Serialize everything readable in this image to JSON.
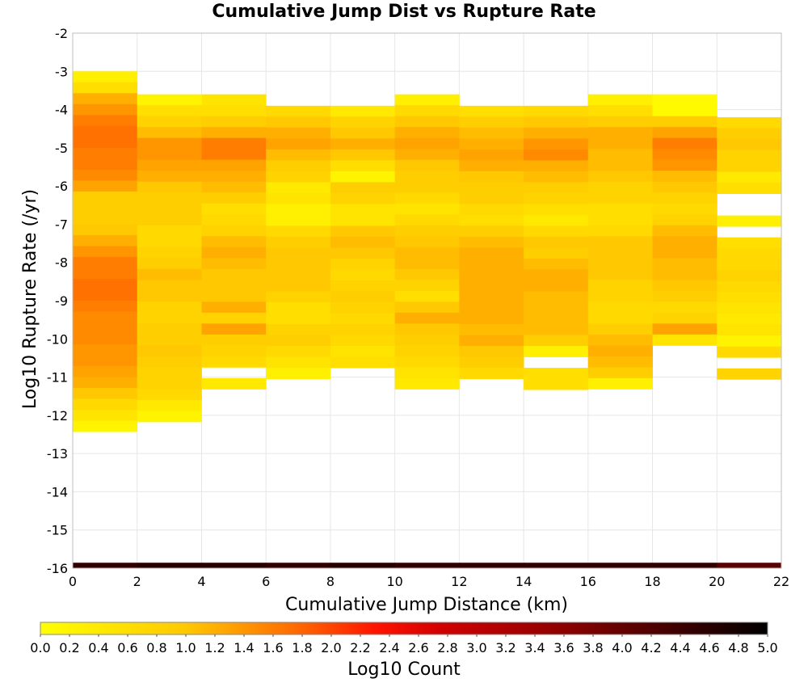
{
  "chart_data": {
    "type": "heatmap",
    "title": "Cumulative Jump Dist vs Rupture Rate",
    "xlabel": "Cumulative Jump Distance (km)",
    "ylabel": "Log10 Rupture Rate (/yr)",
    "colorbar_label": "Log10 Count",
    "xlim": [
      0,
      22
    ],
    "ylim": [
      -16,
      -2
    ],
    "x_ticks": [
      "0",
      "2",
      "4",
      "6",
      "8",
      "10",
      "12",
      "14",
      "16",
      "18",
      "20",
      "22"
    ],
    "y_ticks": [
      "-2",
      "-3",
      "-4",
      "-5",
      "-6",
      "-7",
      "-8",
      "-9",
      "-10",
      "-11",
      "-12",
      "-13",
      "-14",
      "-15",
      "-16"
    ],
    "colorbar_ticks": [
      "0.0",
      "0.2",
      "0.4",
      "0.6",
      "0.8",
      "1.0",
      "1.2",
      "1.4",
      "1.6",
      "1.8",
      "2.0",
      "2.2",
      "2.4",
      "2.6",
      "2.8",
      "3.0",
      "3.2",
      "3.4",
      "3.6",
      "3.8",
      "4.0",
      "4.2",
      "4.4",
      "4.6",
      "4.8",
      "5.0"
    ],
    "colorbar_range": [
      0,
      5
    ],
    "x_bin_width_km": 2,
    "y_bin_height": 0.2857,
    "grid": true,
    "columns": [
      {
        "x_start": 0,
        "y_top": -3.0,
        "values": [
          0.3,
          0.6,
          1.2,
          1.4,
          1.6,
          1.7,
          1.7,
          1.6,
          1.6,
          1.5,
          1.3,
          0.9,
          0.9,
          0.9,
          1.0,
          1.2,
          1.4,
          1.6,
          1.6,
          1.7,
          1.7,
          1.6,
          1.5,
          1.5,
          1.5,
          1.4,
          1.4,
          1.3,
          1.2,
          1.0,
          0.7,
          0.5,
          0.2
        ]
      },
      {
        "x_start": 2,
        "y_top": -3.6,
        "values": [
          0.2,
          0.6,
          0.8,
          1.1,
          1.4,
          1.4,
          1.3,
          1.2,
          1.0,
          0.9,
          0.9,
          0.9,
          0.7,
          0.7,
          0.8,
          0.9,
          1.1,
          1.0,
          1.0,
          0.8,
          0.8,
          0.9,
          0.9,
          1.0,
          0.9,
          0.8,
          0.8,
          0.7,
          0.4,
          0.2
        ]
      },
      {
        "x_start": 4,
        "y_top": -3.6,
        "values": [
          0.5,
          0.6,
          0.9,
          1.2,
          1.6,
          1.6,
          1.3,
          1.2,
          1.1,
          0.9,
          0.6,
          0.7,
          0.8,
          1.1,
          1.2,
          1.1,
          1.0,
          1.0,
          1.0,
          1.2,
          0.8,
          1.3,
          0.9,
          0.8,
          0.7,
          null,
          0.4
        ]
      },
      {
        "x_start": 6,
        "y_top": -3.9,
        "values": [
          0.7,
          1.0,
          1.2,
          1.3,
          1.1,
          0.9,
          0.8,
          0.4,
          0.5,
          0.3,
          0.3,
          0.7,
          0.9,
          1.0,
          1.0,
          1.0,
          1.0,
          0.8,
          0.6,
          0.6,
          0.8,
          0.9,
          0.7,
          0.5,
          0.3
        ]
      },
      {
        "x_start": 8,
        "y_top": -3.9,
        "values": [
          0.4,
          0.8,
          1.0,
          1.2,
          1.0,
          0.6,
          0.2,
          0.9,
          0.8,
          0.5,
          0.5,
          1.0,
          1.1,
          1.0,
          0.8,
          0.7,
          0.8,
          0.9,
          0.8,
          0.7,
          0.8,
          0.7,
          0.5,
          0.6
        ]
      },
      {
        "x_start": 10,
        "y_top": -3.6,
        "values": [
          0.3,
          0.7,
          1.0,
          1.2,
          1.3,
          1.2,
          1.0,
          0.9,
          0.9,
          0.7,
          0.5,
          0.7,
          0.9,
          1.0,
          1.1,
          1.1,
          1.0,
          0.8,
          0.6,
          1.0,
          1.2,
          1.0,
          0.9,
          0.8,
          0.7,
          0.5,
          0.4
        ]
      },
      {
        "x_start": 12,
        "y_top": -3.9,
        "values": [
          0.6,
          0.9,
          1.1,
          1.2,
          1.3,
          1.2,
          1.0,
          0.9,
          0.9,
          0.7,
          0.6,
          0.9,
          1.1,
          1.2,
          1.2,
          1.2,
          1.2,
          1.2,
          1.2,
          1.2,
          1.1,
          1.2,
          1.0,
          0.9,
          0.7
        ]
      },
      {
        "x_start": 14,
        "y_top": -3.9,
        "values": [
          0.7,
          1.0,
          1.2,
          1.4,
          1.5,
          1.2,
          1.1,
          0.9,
          0.8,
          0.6,
          0.4,
          0.7,
          1.0,
          0.9,
          1.1,
          1.2,
          1.2,
          1.1,
          1.1,
          1.1,
          1.1,
          0.9,
          0.3,
          null,
          0.6,
          0.6
        ]
      },
      {
        "x_start": 16,
        "y_top": -3.6,
        "values": [
          0.3,
          0.6,
          0.9,
          1.2,
          1.2,
          1.1,
          1.1,
          1.0,
          0.8,
          0.8,
          0.6,
          0.6,
          0.7,
          1.0,
          1.0,
          1.0,
          1.0,
          0.8,
          0.8,
          0.7,
          0.7,
          0.9,
          1.1,
          1.2,
          1.1,
          0.9,
          0.3
        ]
      },
      {
        "x_start": 18,
        "y_top": -3.6,
        "values": [
          0.1,
          0.1,
          0.9,
          1.3,
          1.6,
          1.5,
          1.4,
          1.1,
          1.0,
          0.8,
          0.7,
          0.8,
          1.1,
          1.2,
          1.2,
          1.1,
          1.1,
          1.0,
          0.9,
          0.7,
          0.8,
          1.3,
          0.5
        ]
      },
      {
        "x_start": 20,
        "y_top": -4.2,
        "values": [
          0.7,
          0.9,
          1.0,
          0.8,
          0.8,
          0.4,
          0.6,
          null,
          null,
          0.3,
          null,
          0.6,
          0.7,
          0.7,
          0.8,
          0.7,
          0.6,
          0.5,
          0.4,
          0.5,
          0.2,
          0.7,
          null,
          0.8
        ]
      }
    ],
    "bottom_row": {
      "y": -16,
      "values": [
        4.5,
        4.6,
        4.6,
        4.5,
        4.6,
        4.5,
        4.5,
        4.5,
        4.5,
        4.5,
        4.1
      ]
    }
  }
}
